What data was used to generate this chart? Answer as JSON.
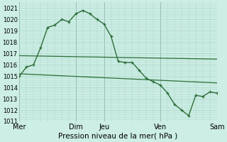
{
  "bg_color": "#cceee4",
  "grid_color": "#aad4c8",
  "line_color": "#2d6e3a",
  "title": "Pression niveau de la mer( hPa )",
  "ylim": [
    1011,
    1021.5
  ],
  "yticks": [
    1011,
    1012,
    1013,
    1014,
    1015,
    1016,
    1017,
    1018,
    1019,
    1020,
    1021
  ],
  "xtick_labels": [
    "Mer",
    "Dim",
    "Jeu",
    "Ven",
    "Sam"
  ],
  "xtick_positions": [
    0,
    4,
    6,
    10,
    14
  ],
  "vline_positions": [
    0,
    4,
    6,
    10,
    14
  ],
  "line1_x": [
    0,
    0.5,
    1.0,
    1.5,
    2.0,
    2.5,
    3.0,
    3.5,
    4.0,
    4.5,
    5.0,
    5.5,
    6.0,
    6.5,
    7.0,
    7.5,
    8.0,
    8.5,
    9.0,
    9.5,
    10.0,
    10.5,
    11.0,
    11.5,
    12.0,
    12.5,
    13.0,
    13.5,
    14.0
  ],
  "line1_y": [
    1015.0,
    1015.8,
    1016.0,
    1017.5,
    1019.3,
    1019.5,
    1020.0,
    1019.8,
    1020.5,
    1020.8,
    1020.5,
    1020.0,
    1019.6,
    1018.5,
    1016.3,
    1016.2,
    1016.2,
    1015.5,
    1014.8,
    1014.5,
    1014.2,
    1013.5,
    1012.5,
    1012.0,
    1011.5,
    1013.3,
    1013.2,
    1013.6,
    1013.5
  ],
  "line2_x": [
    0,
    14
  ],
  "line2_y": [
    1016.8,
    1016.5
  ],
  "line3_x": [
    0,
    14
  ],
  "line3_y": [
    1015.2,
    1014.4
  ],
  "figsize": [
    3.2,
    2.0
  ],
  "dpi": 100
}
